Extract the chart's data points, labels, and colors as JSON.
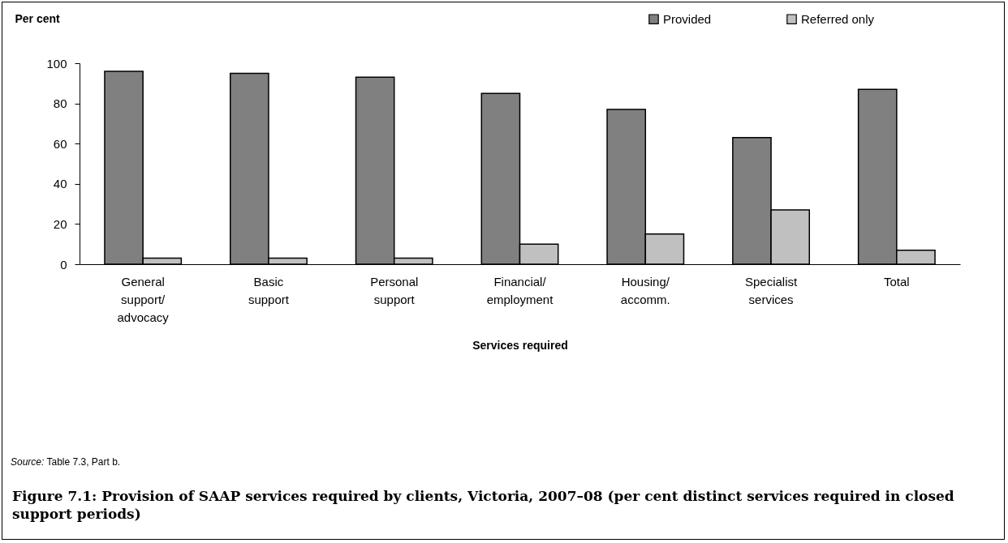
{
  "chart_data": {
    "type": "bar",
    "title": "Figure 7.1: Provision of SAAP services required by clients, Victoria, 2007–08 (per cent distinct services required in closed support periods)",
    "xlabel": "Services required",
    "ylabel": "Per cent",
    "categories": [
      "General support/advocacy",
      "Basic support",
      "Personal support",
      "Financial/employment",
      "Housing/accomm.",
      "Specialist services",
      "Total"
    ],
    "series": [
      {
        "name": "Provided",
        "color": "#808080",
        "values": [
          96,
          95,
          93,
          85,
          77,
          63,
          87
        ]
      },
      {
        "name": "Referred only",
        "color": "#c0c0c0",
        "values": [
          3,
          3,
          3,
          10,
          15,
          27,
          7
        ]
      }
    ],
    "ylim": [
      0,
      100
    ],
    "yticks": [
      0,
      20,
      40,
      60,
      80,
      100
    ],
    "grid": false,
    "legend": "top right",
    "annotations": [
      "Source: Table 7.3, Part b."
    ]
  }
}
